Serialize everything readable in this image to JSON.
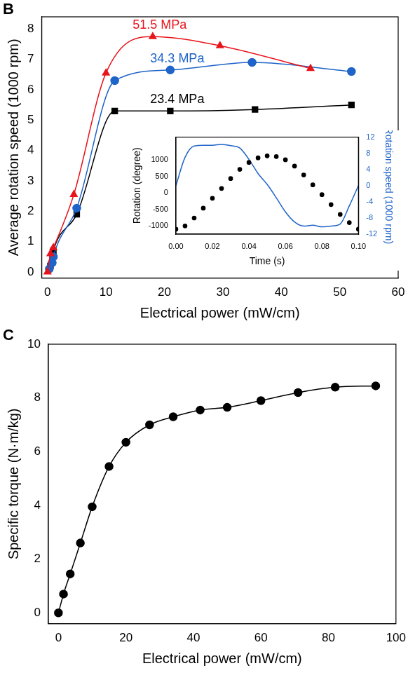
{
  "chart_data": [
    {
      "panel": "B",
      "type": "line",
      "x_label": "Electrical power (mW/cm)",
      "y_label": "Average rotation speed (1000 rpm)",
      "xlim": [
        -1,
        60
      ],
      "xticks": [
        0,
        10,
        20,
        30,
        40,
        50,
        60
      ],
      "ylim": [
        -0.2,
        8.4
      ],
      "yticks": [
        0,
        1,
        2,
        3,
        4,
        5,
        6,
        7,
        8
      ],
      "series": [
        {
          "name": "51.5 MPa",
          "color": "#e8141b",
          "marker": "triangle",
          "line_style": "solid",
          "x": [
            0,
            0.5,
            1,
            4.5,
            10,
            18,
            29.5,
            45
          ],
          "values": [
            0,
            0.6,
            0.8,
            2.55,
            6.55,
            7.75,
            7.45,
            6.7
          ]
        },
        {
          "name": "34.3 MPa",
          "color": "#1f64c8",
          "marker": "circle",
          "line_style": "solid",
          "x": [
            0.3,
            0.8,
            1,
            5,
            11.5,
            21,
            35,
            52
          ],
          "values": [
            0.1,
            0.3,
            0.5,
            2.1,
            6.3,
            6.65,
            6.9,
            6.6
          ]
        },
        {
          "name": "23.4 MPa",
          "color": "#000000",
          "marker": "square",
          "line_style": "solid",
          "x": [
            0.5,
            1,
            5,
            11.5,
            21,
            35.5,
            52
          ],
          "values": [
            0.2,
            0.7,
            1.9,
            5.3,
            5.3,
            5.35,
            5.5
          ]
        }
      ],
      "inset": {
        "type": "line",
        "x_label": "Time (s)",
        "y_label": "Rotation (degree)",
        "y2_label": "Rotation speed (1000 rpm)",
        "x": [
          0,
          0.005,
          0.01,
          0.015,
          0.02,
          0.025,
          0.03,
          0.035,
          0.04,
          0.045,
          0.05,
          0.055,
          0.06,
          0.065,
          0.07,
          0.075,
          0.08,
          0.085,
          0.09,
          0.095,
          0.1
        ],
        "xlim": [
          0,
          0.1
        ],
        "xticks": [
          {
            "value": 0,
            "label": "0.00"
          },
          {
            "value": 0.02,
            "label": "0.02"
          },
          {
            "value": 0.04,
            "label": "0.04"
          },
          {
            "value": 0.06,
            "label": "0.06"
          },
          {
            "value": 0.08,
            "label": "0.08"
          },
          {
            "value": 0.1,
            "label": "0.10"
          }
        ],
        "ylim": [
          -1250,
          1700
        ],
        "yticks": [
          -1000,
          -500,
          0,
          500,
          1000
        ],
        "y2lim": [
          -12,
          12
        ],
        "y2ticks": [
          -12,
          -8,
          -4,
          0,
          4,
          8,
          12
        ],
        "series": [
          {
            "color": "#000000",
            "marker": "circle",
            "line_style": "none",
            "values": [
              -1100,
              -1000,
              -760,
              -460,
              -160,
              140,
              440,
              720,
              930,
              1070,
              1130,
              1110,
              1010,
              820,
              550,
              250,
              -50,
              -350,
              -650,
              -900,
              -1100
            ]
          },
          {
            "color": "#1f64c8",
            "marker": "none",
            "line_style": "solid",
            "axis": "y2",
            "values": [
              0,
              7,
              9.8,
              10,
              10,
              10.2,
              9.9,
              9.3,
              6.5,
              3,
              0.3,
              -3,
              -6.5,
              -9,
              -10,
              -9.8,
              -10.2,
              -10,
              -9.5,
              -5,
              0
            ]
          }
        ]
      }
    },
    {
      "panel": "C",
      "type": "line",
      "x_label": "Electrical power (mW/cm)",
      "y_label": "Specific torque (N·m/kg)",
      "xlim": [
        -3,
        100
      ],
      "xticks": [
        0,
        20,
        40,
        60,
        80,
        100
      ],
      "ylim": [
        -0.4,
        10
      ],
      "yticks": [
        0,
        2,
        4,
        6,
        8,
        10
      ],
      "color": "#000000",
      "marker": "circle",
      "line_style": "solid",
      "x": [
        0,
        1.5,
        3.5,
        6.5,
        10,
        15,
        20,
        27,
        34,
        42,
        50,
        60,
        71,
        82,
        94
      ],
      "values": [
        0,
        0.7,
        1.45,
        2.6,
        3.95,
        5.45,
        6.35,
        7.0,
        7.3,
        7.55,
        7.65,
        7.9,
        8.2,
        8.4,
        8.45
      ]
    }
  ]
}
